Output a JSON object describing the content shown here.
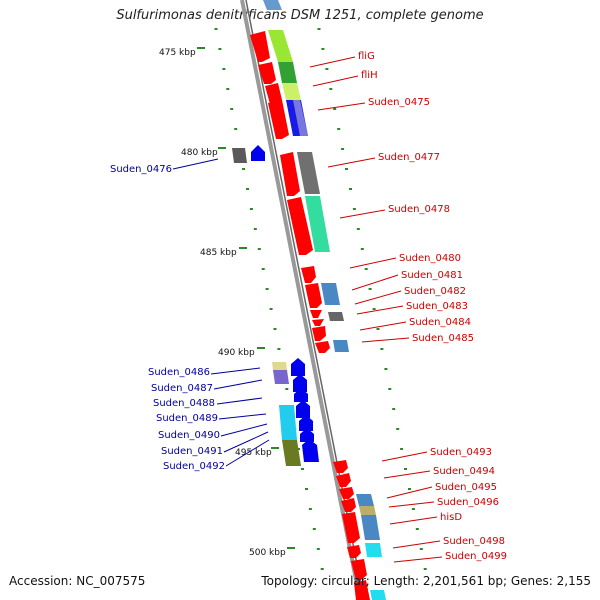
{
  "title": "Sulfurimonas denitrificans DSM 1251, complete genome",
  "footer": {
    "accession": "Accession: NC_007575",
    "summary": "Topology: circular; Length: 2,201,561 bp; Genes: 2,155"
  },
  "colors": {
    "backbone": "#8a8a8a",
    "forward_cds": "#ff0000",
    "reverse_cds": "#0000ff",
    "tick": "#2a8a2a",
    "label_forward": "#cc0000",
    "label_reverse": "#000099"
  },
  "scale_labels": [
    "475 kbp",
    "480 kbp",
    "485 kbp",
    "490 kbp",
    "495 kbp",
    "500 kbp"
  ],
  "forward_labels": [
    "fliG",
    "fliH",
    "Suden_0475",
    "Suden_0477",
    "Suden_0478",
    "Suden_0480",
    "Suden_0481",
    "Suden_0482",
    "Suden_0483",
    "Suden_0484",
    "Suden_0485",
    "Suden_0493",
    "Suden_0494",
    "Suden_0495",
    "Suden_0496",
    "hisD",
    "Suden_0498",
    "Suden_0499"
  ],
  "reverse_labels": [
    "Suden_0476",
    "Suden_0486",
    "Suden_0487",
    "Suden_0488",
    "Suden_0489",
    "Suden_0490",
    "Suden_0491",
    "Suden_0492"
  ]
}
